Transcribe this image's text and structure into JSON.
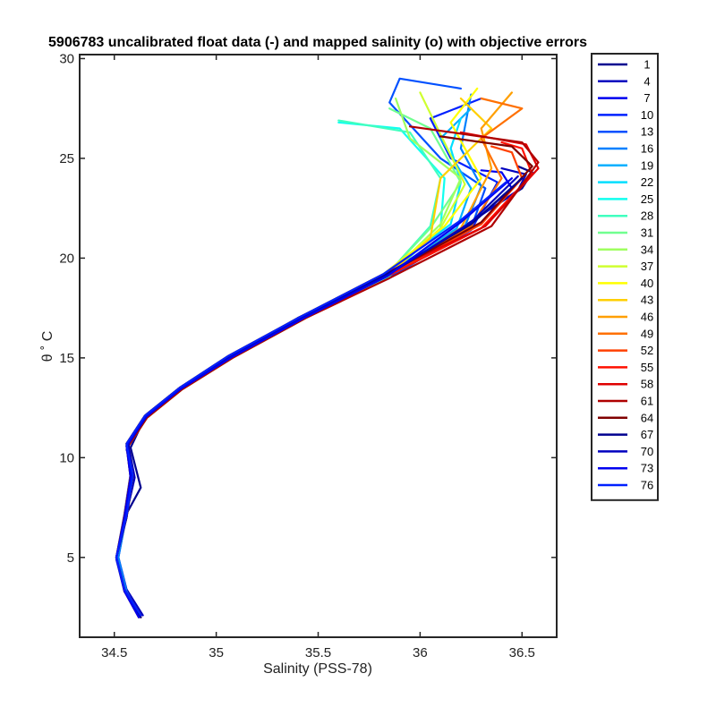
{
  "chart_data": {
    "type": "line",
    "title": "5906783 uncalibrated float data (-) and mapped salinity (o) with objective errors",
    "xlabel": "Salinity (PSS-78)",
    "ylabel": "θ ˚ C",
    "xlim": [
      34.33,
      36.67
    ],
    "ylim": [
      1,
      30.2
    ],
    "xticks": [
      34.5,
      35,
      35.5,
      36,
      36.5
    ],
    "yticks": [
      5,
      10,
      15,
      20,
      25,
      30
    ],
    "grid": false,
    "legend_position": "outside-right",
    "legend_entries": [
      "1",
      "4",
      "7",
      "10",
      "13",
      "16",
      "19",
      "22",
      "25",
      "28",
      "31",
      "34",
      "37",
      "40",
      "43",
      "46",
      "49",
      "52",
      "55",
      "58",
      "61",
      "64",
      "67",
      "70",
      "73",
      "76"
    ],
    "legend_colors": [
      "#00008f",
      "#0000bf",
      "#0000ef",
      "#0020ff",
      "#0050ff",
      "#0080ff",
      "#00b0ff",
      "#00dfff",
      "#10ffef",
      "#40ffbf",
      "#70ff8f",
      "#9fff60",
      "#cfff30",
      "#ffff00",
      "#ffcf00",
      "#ff9f00",
      "#ff7000",
      "#ff4000",
      "#ff1000",
      "#df0000",
      "#af0000",
      "#800000",
      "#00008f",
      "#0000bf",
      "#0000ef",
      "#0020ff"
    ],
    "series": [
      {
        "name": "1",
        "color": "#00008f",
        "x": [
          34.63,
          34.55,
          34.51,
          34.55,
          34.63,
          34.58,
          34.65,
          34.8,
          35.05,
          35.4,
          35.8,
          36.2,
          36.5,
          36.55,
          36.48
        ],
        "y": [
          2,
          3.3,
          5,
          7,
          8.5,
          10.5,
          12,
          13.3,
          15,
          17,
          19,
          21.5,
          23.5,
          24.3,
          24.6
        ]
      },
      {
        "name": "4",
        "color": "#0000bf",
        "x": [
          34.64,
          34.56,
          34.52,
          34.56,
          34.6,
          34.57,
          34.66,
          34.82,
          35.06,
          35.4,
          35.82,
          36.22,
          36.48,
          36.52,
          36.4
        ],
        "y": [
          2.1,
          3.4,
          5,
          7.2,
          9,
          10.6,
          12,
          13.4,
          15,
          17,
          19,
          21.6,
          23.4,
          24.2,
          24.5
        ]
      },
      {
        "name": "7",
        "color": "#0000ef",
        "x": [
          34.63,
          34.55,
          34.51,
          34.56,
          34.59,
          34.56,
          34.64,
          34.8,
          35.05,
          35.42,
          35.85,
          36.25,
          36.45,
          36.4,
          36.3
        ],
        "y": [
          2,
          3.3,
          4.9,
          7,
          9.4,
          10.4,
          11.9,
          13.3,
          15,
          17.1,
          19.2,
          21.7,
          23.5,
          24.3,
          24.4
        ]
      },
      {
        "name": "10",
        "color": "#0020ff",
        "x": [
          34.62,
          34.55,
          34.51,
          34.55,
          34.58,
          34.57,
          34.66,
          34.82,
          35.07,
          35.43,
          35.85,
          36.25,
          36.38,
          36.15,
          36.05,
          36.3
        ],
        "y": [
          2,
          3.3,
          5,
          7.2,
          9.2,
          10.8,
          12.2,
          13.5,
          15.1,
          17.1,
          19.1,
          21.4,
          23.8,
          25,
          27,
          28
        ]
      },
      {
        "name": "13",
        "color": "#0050ff",
        "x": [
          34.63,
          34.55,
          34.51,
          34.56,
          34.58,
          34.56,
          34.65,
          34.82,
          35.07,
          35.42,
          35.85,
          36.25,
          36.32,
          36.1,
          35.85,
          35.9,
          36.2
        ],
        "y": [
          2.1,
          3.4,
          5,
          7,
          9,
          10.6,
          12,
          13.4,
          15,
          17,
          19,
          21.5,
          23.5,
          25,
          27.8,
          29,
          28.5
        ]
      },
      {
        "name": "16",
        "color": "#0080ff",
        "x": [
          34.63,
          34.56,
          34.52,
          34.56,
          34.59,
          34.57,
          34.66,
          34.83,
          35.08,
          35.44,
          35.85,
          36.22,
          36.3,
          36.2,
          36.25
        ],
        "y": [
          2,
          3.3,
          5,
          7.1,
          9.1,
          10.7,
          12.1,
          13.5,
          15.1,
          17.1,
          19.2,
          21.6,
          23.6,
          25.5,
          28.2
        ]
      },
      {
        "name": "19",
        "color": "#00b0ff",
        "x": [
          34.62,
          34.55,
          34.51,
          34.55,
          34.58,
          34.56,
          34.65,
          34.82,
          35.07,
          35.43,
          35.84,
          36.18,
          36.25,
          36.1,
          36.25
        ],
        "y": [
          2,
          3.3,
          5,
          7,
          9,
          10.6,
          12,
          13.4,
          15,
          17,
          19.1,
          21.5,
          23.5,
          26,
          27.5
        ]
      },
      {
        "name": "22",
        "color": "#00dfff",
        "x": [
          34.63,
          34.55,
          34.51,
          34.56,
          34.59,
          34.56,
          34.65,
          34.82,
          35.06,
          35.42,
          35.82,
          36.15,
          36.2,
          36.15,
          36.2
        ],
        "y": [
          2.1,
          3.4,
          5,
          7.1,
          9.1,
          10.7,
          12.1,
          13.5,
          15.1,
          17.1,
          19.2,
          21.7,
          23.8,
          25.5,
          27
        ]
      },
      {
        "name": "25",
        "color": "#10ffef",
        "x": [
          34.63,
          34.55,
          34.51,
          34.56,
          34.59,
          34.57,
          34.66,
          34.83,
          35.08,
          35.44,
          35.85,
          36.1,
          36.12,
          35.9,
          35.6
        ],
        "y": [
          2,
          3.3,
          5,
          7,
          9,
          10.6,
          12,
          13.4,
          15,
          17,
          19.1,
          21.5,
          24,
          26.5,
          26.8
        ]
      },
      {
        "name": "28",
        "color": "#40ffbf",
        "x": [
          34.62,
          34.55,
          34.51,
          34.55,
          34.58,
          34.56,
          34.65,
          34.82,
          35.07,
          35.43,
          35.84,
          36.05,
          36.1,
          35.95,
          35.6
        ],
        "y": [
          2.1,
          3.4,
          5,
          7.1,
          9.1,
          10.7,
          12.1,
          13.5,
          15.1,
          17.1,
          19.2,
          21.6,
          24,
          26.3,
          26.9
        ]
      },
      {
        "name": "31",
        "color": "#70ff8f",
        "x": [
          34.63,
          34.55,
          34.51,
          34.56,
          34.59,
          34.56,
          34.65,
          34.82,
          35.06,
          35.42,
          35.82,
          36.05,
          36.2,
          36.05,
          35.85
        ],
        "y": [
          2,
          3.3,
          5,
          7,
          9,
          10.6,
          12,
          13.4,
          15,
          17,
          19,
          21.5,
          23.8,
          26.5,
          27.5
        ]
      },
      {
        "name": "34",
        "color": "#9fff60",
        "x": [
          34.63,
          34.55,
          34.51,
          34.56,
          34.59,
          34.57,
          34.66,
          34.83,
          35.08,
          35.44,
          35.85,
          36.1,
          36.2,
          35.95,
          35.88
        ],
        "y": [
          2.1,
          3.4,
          5,
          7.1,
          9.1,
          10.7,
          12.1,
          13.5,
          15.1,
          17.1,
          19.2,
          21.7,
          24,
          26,
          28
        ]
      },
      {
        "name": "37",
        "color": "#cfff30",
        "x": [
          34.62,
          34.55,
          34.51,
          34.55,
          34.58,
          34.56,
          34.65,
          34.82,
          35.07,
          35.43,
          35.84,
          36.1,
          36.22,
          36.1,
          36.0
        ],
        "y": [
          2,
          3.3,
          5,
          7,
          9,
          10.6,
          12,
          13.4,
          15,
          17,
          19.1,
          21.5,
          23.7,
          26.2,
          28.3
        ]
      },
      {
        "name": "40",
        "color": "#ffff00",
        "x": [
          34.63,
          34.55,
          34.51,
          34.56,
          34.59,
          34.56,
          34.65,
          34.82,
          35.06,
          35.42,
          35.82,
          36.12,
          36.3,
          36.15,
          36.28
        ],
        "y": [
          2.1,
          3.4,
          5,
          7.1,
          9.1,
          10.7,
          12.1,
          13.5,
          15.1,
          17.1,
          19.2,
          21.6,
          24,
          26.8,
          28.5
        ]
      },
      {
        "name": "43",
        "color": "#ffcf00",
        "x": [
          34.63,
          34.55,
          34.51,
          34.56,
          34.59,
          34.57,
          34.66,
          34.83,
          35.08,
          35.44,
          35.85,
          36.05,
          36.1,
          36.35,
          36.2
        ],
        "y": [
          2,
          3.3,
          5,
          7,
          9,
          10.6,
          12,
          13.4,
          15,
          17,
          19.2,
          21,
          24,
          26.5,
          28
        ]
      },
      {
        "name": "46",
        "color": "#ff9f00",
        "x": [
          34.62,
          34.55,
          34.51,
          34.55,
          34.58,
          34.56,
          34.65,
          34.82,
          35.07,
          35.43,
          35.84,
          36.2,
          36.35,
          36.3,
          36.45
        ],
        "y": [
          2.1,
          3.4,
          5,
          7.1,
          9.1,
          10.7,
          12.1,
          13.5,
          15.1,
          17.1,
          19.1,
          21.5,
          24.5,
          26.5,
          28.3
        ]
      },
      {
        "name": "49",
        "color": "#ff7000",
        "x": [
          34.63,
          34.55,
          34.51,
          34.56,
          34.59,
          34.56,
          34.65,
          34.82,
          35.06,
          35.42,
          35.82,
          36.25,
          36.4,
          36.3,
          36.5,
          36.3
        ],
        "y": [
          2,
          3.3,
          5,
          7,
          9,
          10.6,
          12,
          13.4,
          15,
          17,
          19,
          21.6,
          24,
          26,
          27.5,
          28
        ]
      },
      {
        "name": "52",
        "color": "#ff4000",
        "x": [
          34.63,
          34.55,
          34.51,
          34.56,
          34.59,
          34.57,
          34.66,
          34.83,
          35.08,
          35.44,
          35.85,
          36.3,
          36.5,
          36.45,
          36.35
        ],
        "y": [
          2.1,
          3.4,
          5,
          7.1,
          9.1,
          10.7,
          12.1,
          13.5,
          15.1,
          17.1,
          19.2,
          21.7,
          24,
          25.3,
          25.6
        ]
      },
      {
        "name": "55",
        "color": "#ff1000",
        "x": [
          34.62,
          34.55,
          34.51,
          34.55,
          34.58,
          34.56,
          34.65,
          34.82,
          35.07,
          35.43,
          35.84,
          36.3,
          36.55,
          36.5,
          36.4
        ],
        "y": [
          2,
          3.3,
          5,
          7,
          9,
          10.6,
          12,
          13.4,
          15,
          17,
          19.1,
          21.5,
          24.2,
          25.5,
          25.8
        ]
      },
      {
        "name": "58",
        "color": "#df0000",
        "x": [
          34.63,
          34.55,
          34.51,
          34.56,
          34.59,
          34.56,
          34.65,
          34.82,
          35.06,
          35.42,
          35.82,
          36.32,
          36.58,
          36.52,
          36.2
        ],
        "y": [
          2.1,
          3.4,
          5,
          7.1,
          9.1,
          10.7,
          12.1,
          13.5,
          15.1,
          17.1,
          19.2,
          21.6,
          24.5,
          25.7,
          26.3
        ]
      },
      {
        "name": "61",
        "color": "#af0000",
        "x": [
          34.63,
          34.55,
          34.51,
          34.56,
          34.59,
          34.57,
          34.66,
          34.83,
          35.08,
          35.44,
          35.85,
          36.35,
          36.58,
          36.5,
          35.95
        ],
        "y": [
          2,
          3.3,
          5,
          7,
          9,
          10.6,
          12,
          13.4,
          15,
          17,
          19,
          21.6,
          24.8,
          25.8,
          26.6
        ]
      },
      {
        "name": "64",
        "color": "#800000",
        "x": [
          34.62,
          34.55,
          34.51,
          34.55,
          34.58,
          34.56,
          34.65,
          34.82,
          35.07,
          35.43,
          35.84,
          36.3,
          36.55,
          36.45,
          36.1
        ],
        "y": [
          2.1,
          3.4,
          5,
          7.1,
          9.1,
          10.7,
          12.1,
          13.5,
          15.1,
          17.1,
          19.2,
          21.8,
          24.6,
          25.6,
          26.1
        ]
      },
      {
        "name": "67",
        "color": "#00008f",
        "x": [
          34.63,
          34.55,
          34.51,
          34.56,
          34.59,
          34.56,
          34.65,
          34.82,
          35.06,
          35.42,
          35.82,
          36.25,
          36.5
        ],
        "y": [
          2,
          3.3,
          5,
          7,
          9,
          10.6,
          12,
          13.4,
          15,
          17,
          19.1,
          21.7,
          24
        ]
      },
      {
        "name": "70",
        "color": "#0000bf",
        "x": [
          34.63,
          34.55,
          34.51,
          34.56,
          34.59,
          34.57,
          34.66,
          34.83,
          35.08,
          35.44,
          35.85,
          36.25,
          36.48
        ],
        "y": [
          2.1,
          3.4,
          5,
          7.1,
          9.1,
          10.7,
          12.1,
          13.5,
          15.1,
          17.1,
          19.2,
          21.8,
          24.1
        ]
      },
      {
        "name": "73",
        "color": "#0000ef",
        "x": [
          34.62,
          34.55,
          34.51,
          34.55,
          34.58,
          34.56,
          34.65,
          34.82,
          35.07,
          35.43,
          35.84,
          36.2,
          36.45
        ],
        "y": [
          2,
          3.3,
          5,
          7,
          9,
          10.6,
          12,
          13.4,
          15,
          17,
          19.1,
          21.8,
          24
        ]
      },
      {
        "name": "76",
        "color": "#0020ff",
        "x": [
          34.63,
          34.55,
          34.51,
          34.56,
          34.59,
          34.56,
          34.65,
          34.82,
          35.06,
          35.42,
          35.82,
          36.2,
          36.42
        ],
        "y": [
          2.1,
          3.4,
          5,
          7.1,
          9.1,
          10.7,
          12.1,
          13.5,
          15.1,
          17.1,
          19.2,
          21.9,
          23.8
        ]
      }
    ]
  }
}
